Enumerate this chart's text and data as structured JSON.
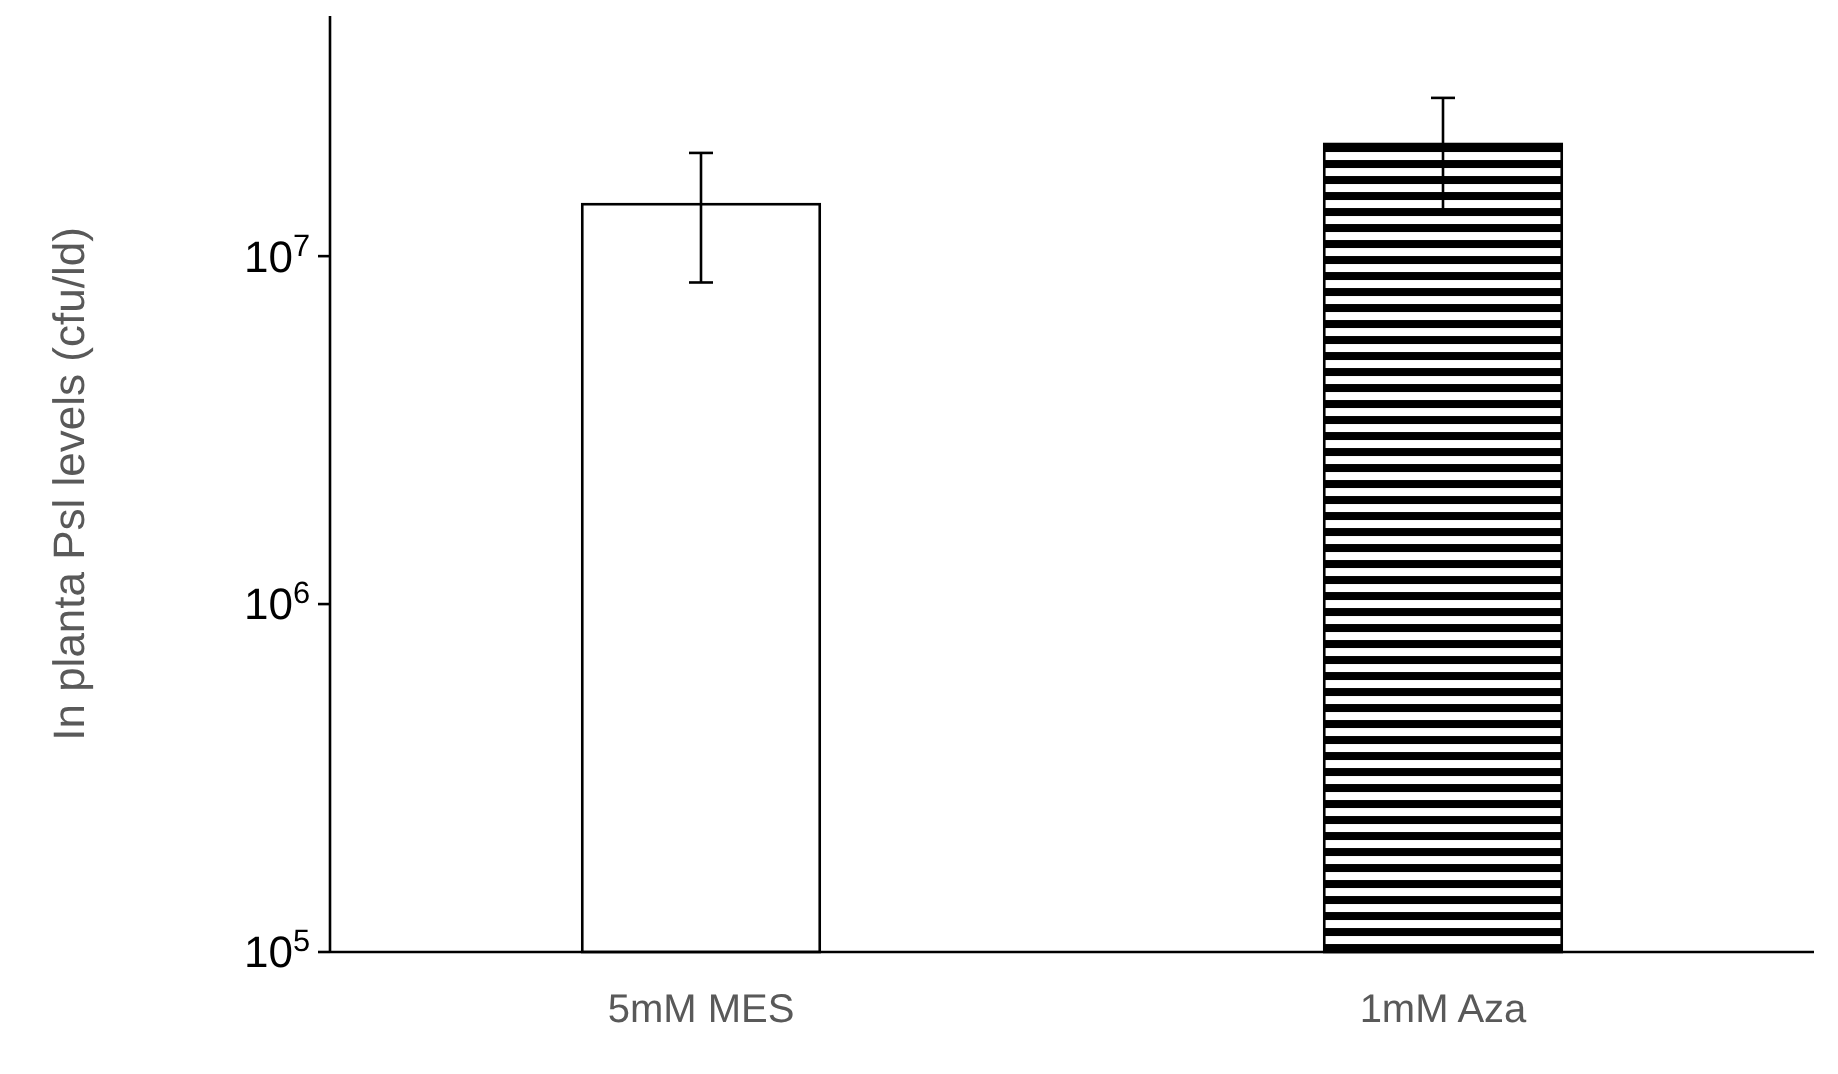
{
  "chart_data": {
    "type": "bar",
    "ylabel": "In planta Psl levels (cfu/ld)",
    "categories": [
      "5mM MES",
      "1mM Aza"
    ],
    "values": [
      14100000,
      21000000
    ],
    "colors": [
      "#ffffff",
      "#000000"
    ],
    "errors": [
      5700000,
      7500000
    ],
    "log": true,
    "ylim": [
      100000,
      49000000
    ],
    "yticks": [
      {
        "value": 100000,
        "label": "10$^{5}$"
      },
      {
        "value": 1000000,
        "label": "10$^{6}$"
      },
      {
        "value": 10000000,
        "label": "10$^{7}$"
      }
    ],
    "grid": false
  }
}
